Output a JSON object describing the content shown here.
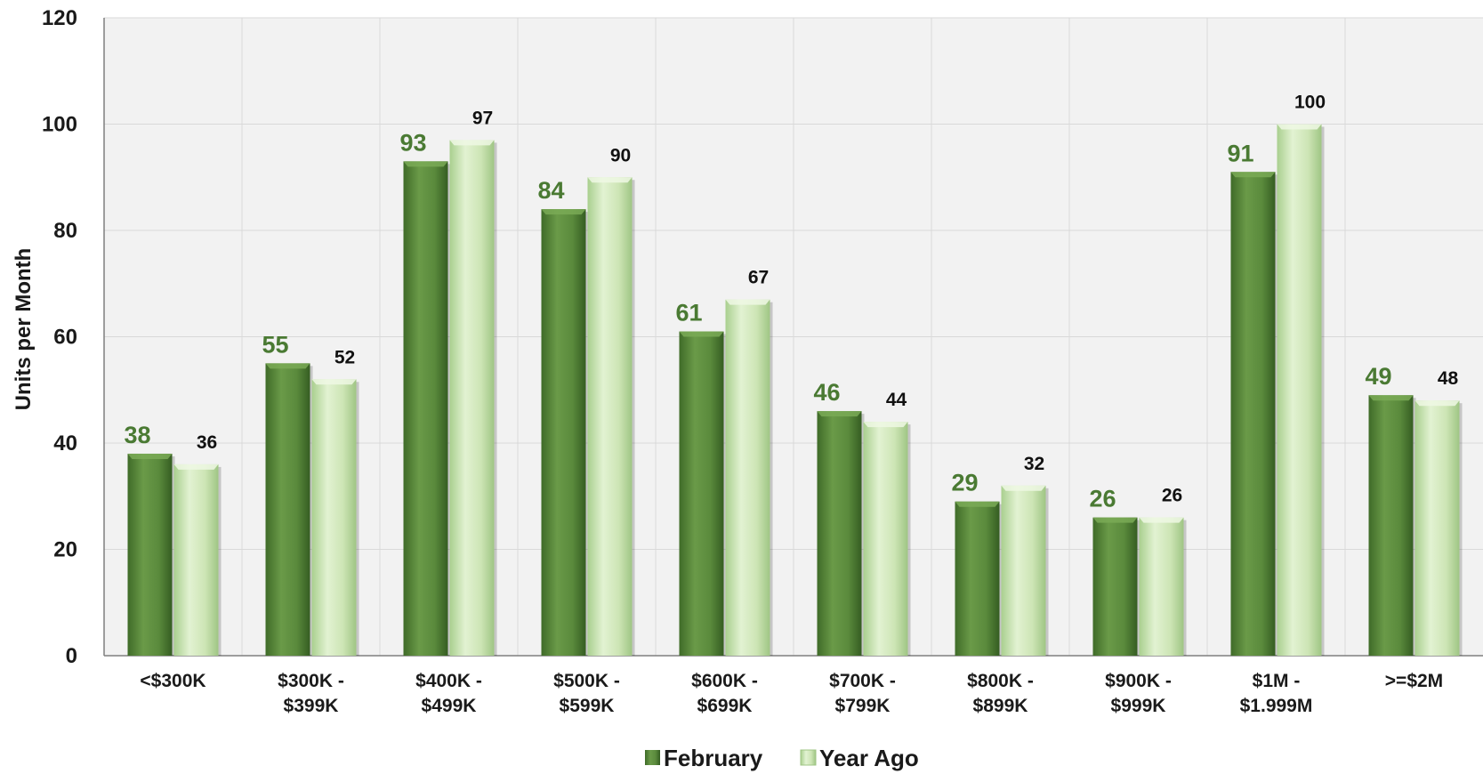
{
  "chart_data": {
    "type": "bar",
    "categories": [
      [
        "<$300K"
      ],
      [
        "$300K -",
        "$399K"
      ],
      [
        "$400K -",
        "$499K"
      ],
      [
        "$500K -",
        "$599K"
      ],
      [
        "$600K -",
        "$699K"
      ],
      [
        "$700K -",
        "$799K"
      ],
      [
        "$800K -",
        "$899K"
      ],
      [
        "$900K -",
        "$999K"
      ],
      [
        "$1M -",
        "$1.999M"
      ],
      [
        ">=$2M"
      ]
    ],
    "series": [
      {
        "name": "February",
        "values": [
          38,
          55,
          93,
          84,
          61,
          46,
          29,
          26,
          91,
          49
        ],
        "labels": [
          "38",
          "55",
          "93",
          "84",
          "61",
          "46",
          "29",
          "26",
          "91",
          "49"
        ]
      },
      {
        "name": "Year Ago",
        "values": [
          36,
          52,
          97,
          90,
          67,
          44,
          32,
          26,
          100,
          48
        ],
        "labels": [
          "36",
          "52",
          "97",
          "90",
          "67",
          "44",
          "32",
          "26",
          "100",
          "48"
        ]
      }
    ],
    "title": "",
    "xlabel": "",
    "ylabel": "Units per Month",
    "ylim": [
      0,
      120
    ],
    "yticks": [
      "0",
      "20",
      "40",
      "60",
      "80",
      "100",
      "120"
    ],
    "grid": true,
    "legend": "bottom-center",
    "colors": {
      "february": "#5a8a3c",
      "year_ago": "#cde5b5",
      "feb_label": "#4a7a33",
      "grid": "#d9d9d9"
    }
  }
}
